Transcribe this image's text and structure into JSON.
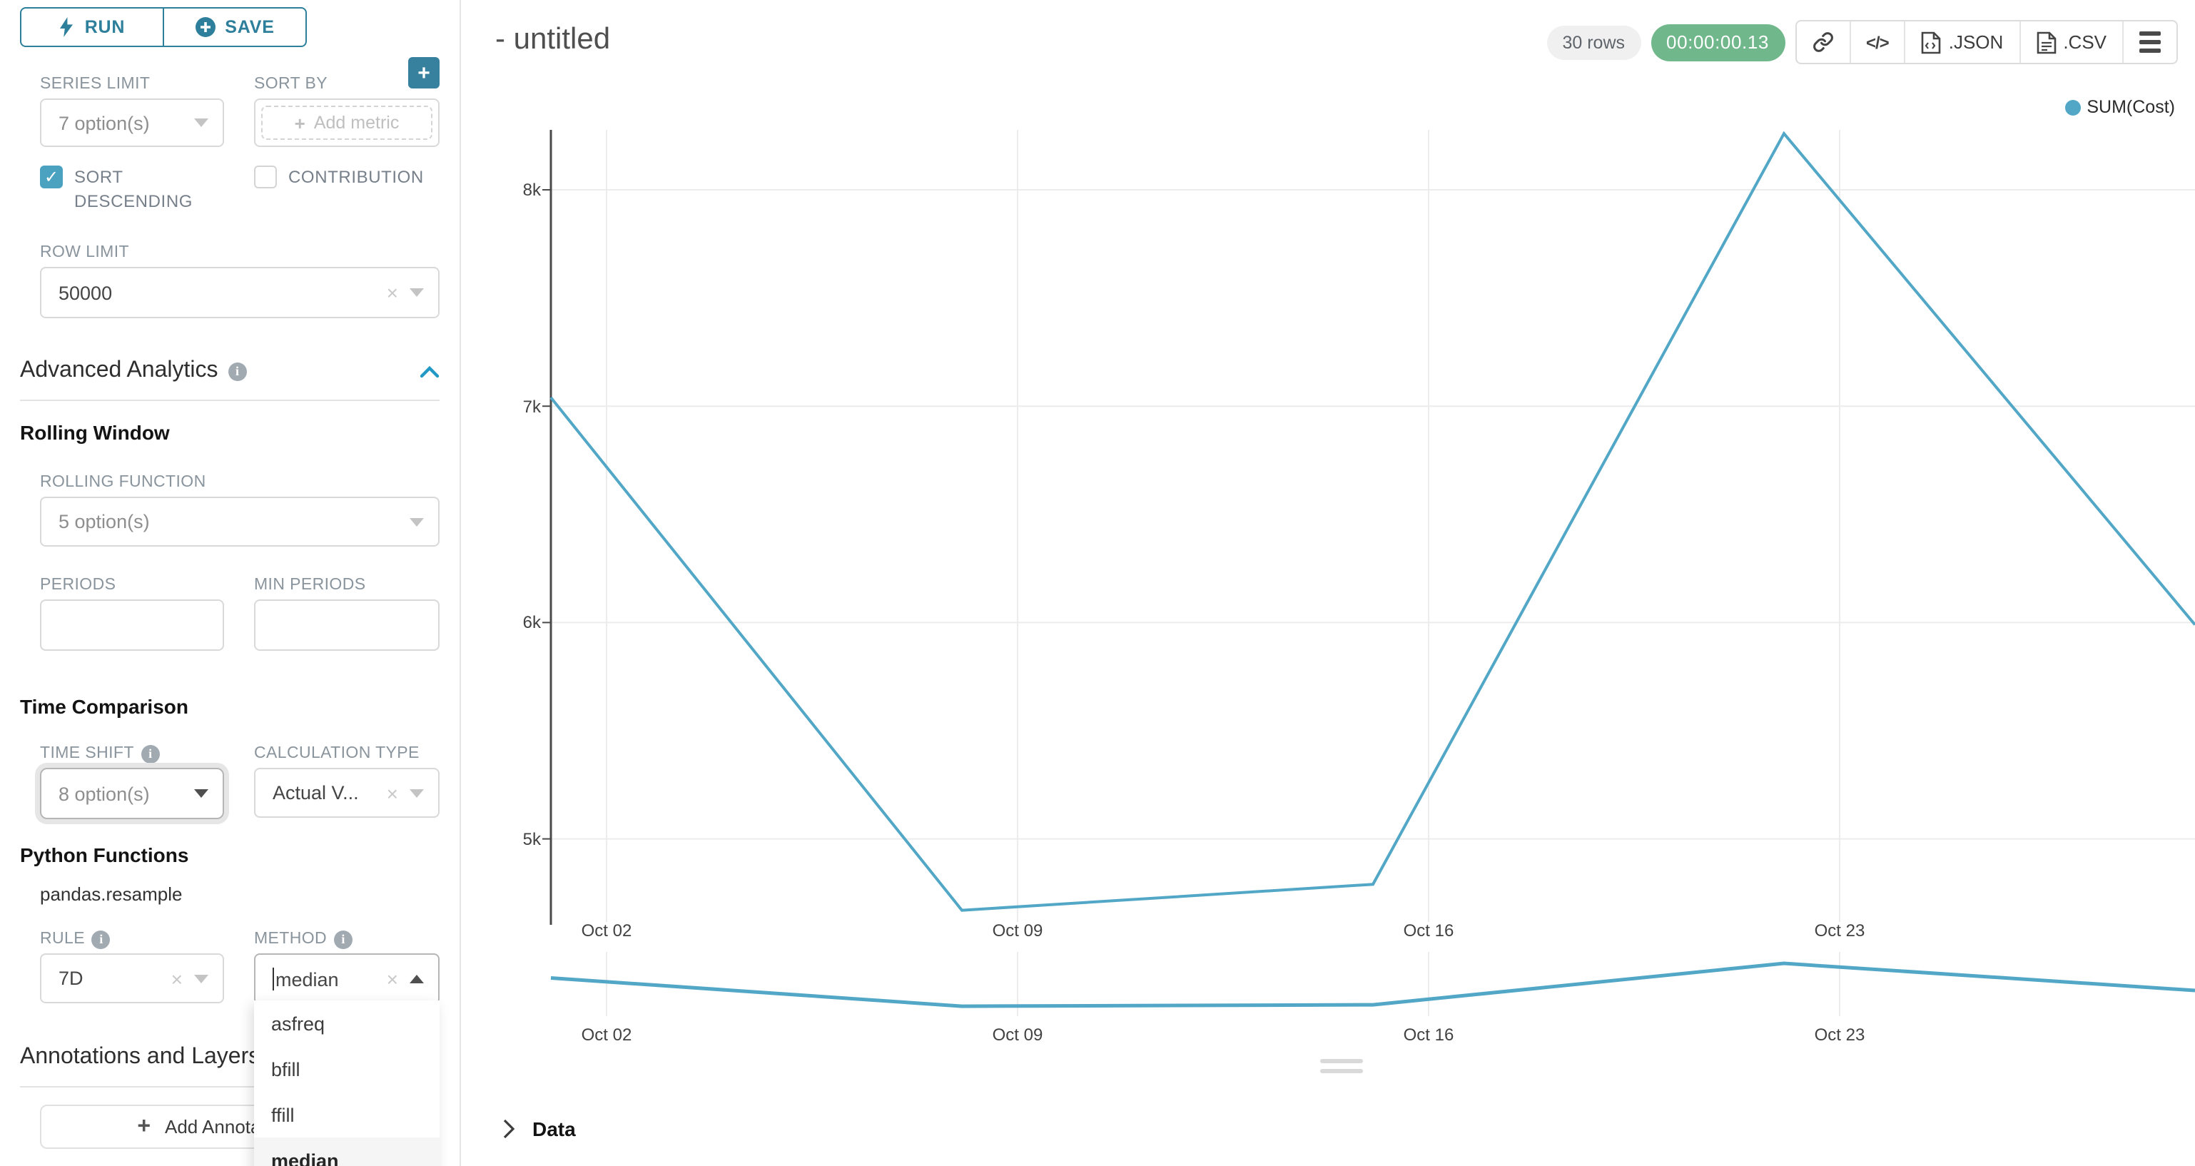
{
  "colors": {
    "accent_teal": "#2d7f9b",
    "checkbox_teal": "#4aa2c0",
    "chevron_blue": "#2299c5",
    "timer_green": "#71b78c",
    "line_blue": "#52a7c7"
  },
  "sidebar": {
    "run_label": "RUN",
    "save_label": "SAVE",
    "series_limit": {
      "label": "SERIES LIMIT",
      "value": "7 option(s)"
    },
    "sort_by": {
      "label": "SORT BY",
      "placeholder": "Add metric"
    },
    "sort_descending": {
      "label": "SORT DESCENDING",
      "checked": true
    },
    "contribution": {
      "label": "CONTRIBUTION",
      "checked": false
    },
    "row_limit": {
      "label": "ROW LIMIT",
      "value": "50000"
    },
    "advanced_analytics": {
      "title": "Advanced Analytics"
    },
    "rolling_window": {
      "title": "Rolling Window"
    },
    "rolling_function": {
      "label": "ROLLING FUNCTION",
      "value": "5 option(s)"
    },
    "periods": {
      "label": "PERIODS",
      "value": ""
    },
    "min_periods": {
      "label": "MIN PERIODS",
      "value": ""
    },
    "time_comparison": {
      "title": "Time Comparison"
    },
    "time_shift": {
      "label": "TIME SHIFT",
      "value": "8 option(s)"
    },
    "calculation_type": {
      "label": "CALCULATION TYPE",
      "value": "Actual V..."
    },
    "python_functions": {
      "title": "Python Functions",
      "function_name": "pandas.resample"
    },
    "rule": {
      "label": "RULE",
      "value": "7D"
    },
    "method": {
      "label": "METHOD",
      "value": "median",
      "selected": "median",
      "options": [
        "asfreq",
        "bfill",
        "ffill",
        "median"
      ]
    },
    "annotations": {
      "title": "Annotations and Layers",
      "add_button": "Add Annotation Layer"
    }
  },
  "header": {
    "title": "- untitled",
    "rows_badge": "30 rows",
    "timer": "00:00:00.13",
    "json_label": ".JSON",
    "csv_label": ".CSV"
  },
  "data_panel": {
    "label": "Data"
  },
  "chart_data": {
    "type": "line",
    "title": "- untitled",
    "legend_entries": [
      "SUM(Cost)"
    ],
    "legend_position": "top-right",
    "legend_color": "#52a7c7",
    "grid": true,
    "x": [
      "Oct 01",
      "Oct 08",
      "Oct 15",
      "Oct 22",
      "Oct 29"
    ],
    "series": [
      {
        "name": "SUM(Cost)",
        "values": [
          7040,
          4670,
          4790,
          8260,
          5990
        ]
      }
    ],
    "x_tick_labels": [
      "Oct 02",
      "Oct 09",
      "Oct 16",
      "Oct 23"
    ],
    "y_ticks": [
      {
        "label": "8k",
        "value": 8000
      },
      {
        "label": "7k",
        "value": 7000
      },
      {
        "label": "6k",
        "value": 6000
      },
      {
        "label": "5k",
        "value": 5000
      }
    ],
    "ylim": [
      4600,
      8400
    ],
    "preview": {
      "note": "same series shown in zoom preview strip",
      "values": [
        7040,
        4670,
        4790,
        8260,
        5990
      ]
    }
  }
}
